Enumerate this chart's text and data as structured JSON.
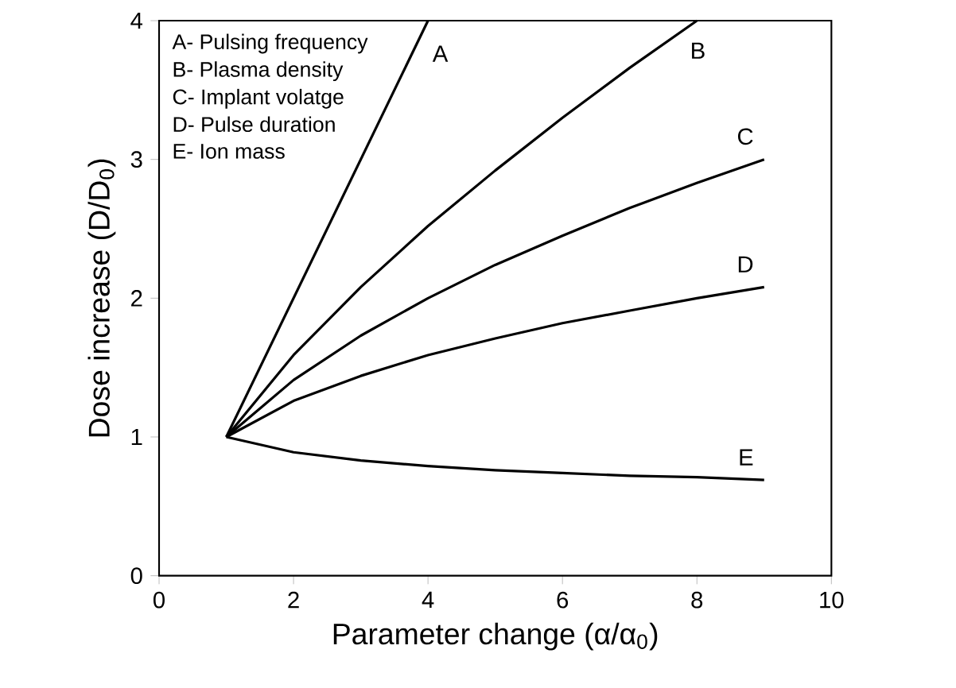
{
  "chart_data": {
    "type": "line",
    "xlabel": "Parameter change (α/α$_{0}$)",
    "ylabel": "Dose increase (D/D$_{0}$)",
    "xlim": [
      0,
      10
    ],
    "ylim": [
      0,
      4
    ],
    "xticks": [
      0,
      2,
      4,
      6,
      8,
      10
    ],
    "yticks": [
      0,
      1,
      2,
      3,
      4
    ],
    "grid": false,
    "legend": false,
    "marker": "none",
    "line_style": "solid",
    "series": [
      {
        "name": "A",
        "color": "#000000",
        "x": [
          1,
          4
        ],
        "values": [
          1,
          4
        ]
      },
      {
        "name": "B",
        "color": "#000000",
        "x": [
          1,
          2,
          3,
          4,
          5,
          6,
          7,
          8
        ],
        "values": [
          1,
          1.59,
          2.08,
          2.52,
          2.92,
          3.3,
          3.66,
          4.0
        ]
      },
      {
        "name": "C",
        "color": "#000000",
        "x": [
          1,
          2,
          3,
          4,
          5,
          6,
          7,
          8,
          9
        ],
        "values": [
          1,
          1.41,
          1.73,
          2.0,
          2.24,
          2.45,
          2.65,
          2.83,
          3.0
        ]
      },
      {
        "name": "D",
        "color": "#000000",
        "x": [
          1,
          2,
          3,
          4,
          5,
          6,
          7,
          8,
          9
        ],
        "values": [
          1,
          1.26,
          1.44,
          1.59,
          1.71,
          1.82,
          1.91,
          2.0,
          2.08
        ]
      },
      {
        "name": "E",
        "color": "#000000",
        "x": [
          1,
          2,
          3,
          4,
          5,
          6,
          7,
          8,
          9
        ],
        "values": [
          1,
          0.89,
          0.83,
          0.79,
          0.76,
          0.74,
          0.72,
          0.71,
          0.69
        ]
      }
    ],
    "annotations": [
      "A- Pulsing frequency",
      "B- Plasma density",
      "C- Implant volatge",
      "D- Pulse duration",
      "E- Ion mass"
    ]
  }
}
